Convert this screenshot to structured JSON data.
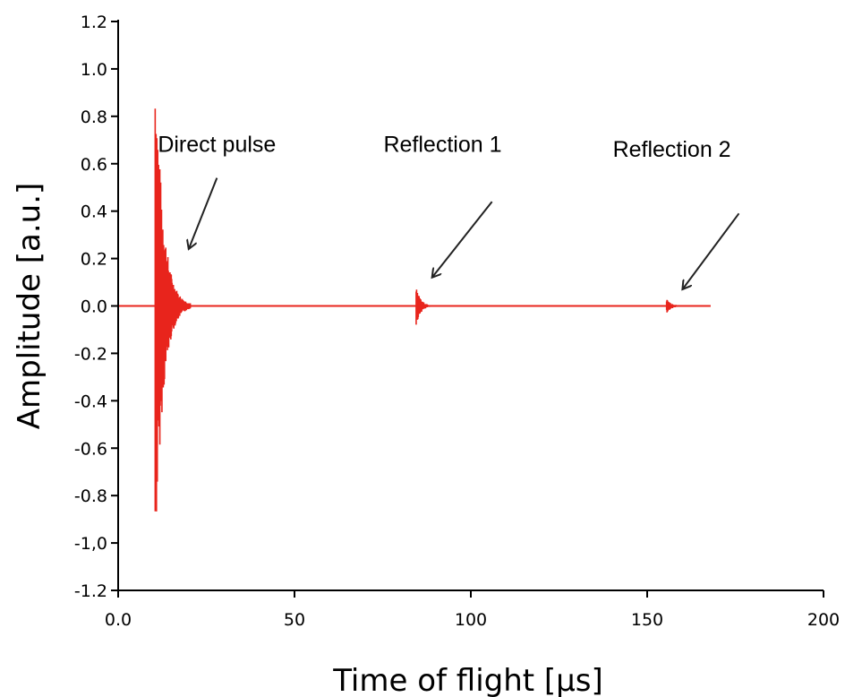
{
  "chart_data": {
    "type": "line",
    "xlabel": "Time of flight [µs]",
    "ylabel": "Amplitude [a.u.]",
    "xlim": [
      0,
      200
    ],
    "ylim": [
      -1.2,
      1.2
    ],
    "x_ticks": [
      0,
      50,
      100,
      150,
      200
    ],
    "x_tick_labels": [
      "0.0",
      "50",
      "100",
      "150",
      "200"
    ],
    "y_ticks": [
      1.2,
      1.0,
      0.8,
      0.6,
      0.4,
      0.2,
      0.0,
      -0.2,
      -0.4,
      -0.6,
      -0.8,
      -1.0,
      -1.2
    ],
    "y_tick_labels": [
      "1.2",
      "1.0",
      "0.8",
      "0.6",
      "0.4",
      "0.2",
      "0.0",
      "-0.2",
      "-0.4",
      "-0.6",
      "-0.8",
      "-1,0",
      "-1.2"
    ],
    "grid": false,
    "line_color": "#e8241c",
    "signal_end": 168,
    "pulses": [
      {
        "t0": 10.5,
        "peak": 1.08,
        "trough": -1.08,
        "decay": 2.2,
        "length": 10
      },
      {
        "t0": 84.5,
        "peak": 0.08,
        "trough": -0.08,
        "decay": 1.3,
        "length": 10
      },
      {
        "t0": 155.5,
        "peak": 0.03,
        "trough": -0.03,
        "decay": 1.5,
        "length": 8
      }
    ],
    "annotations": [
      {
        "text": "Direct pulse",
        "x": 28,
        "y": 0.65,
        "arrow_from": [
          28,
          0.54
        ],
        "arrow_to": [
          20,
          0.24
        ]
      },
      {
        "text": "Reflection 1",
        "x": 92,
        "y": 0.65,
        "arrow_from": [
          106,
          0.44
        ],
        "arrow_to": [
          89,
          0.12
        ]
      },
      {
        "text": "Reflection 2",
        "x": 157,
        "y": 0.63,
        "arrow_from": [
          176,
          0.39
        ],
        "arrow_to": [
          160,
          0.07
        ]
      }
    ]
  }
}
